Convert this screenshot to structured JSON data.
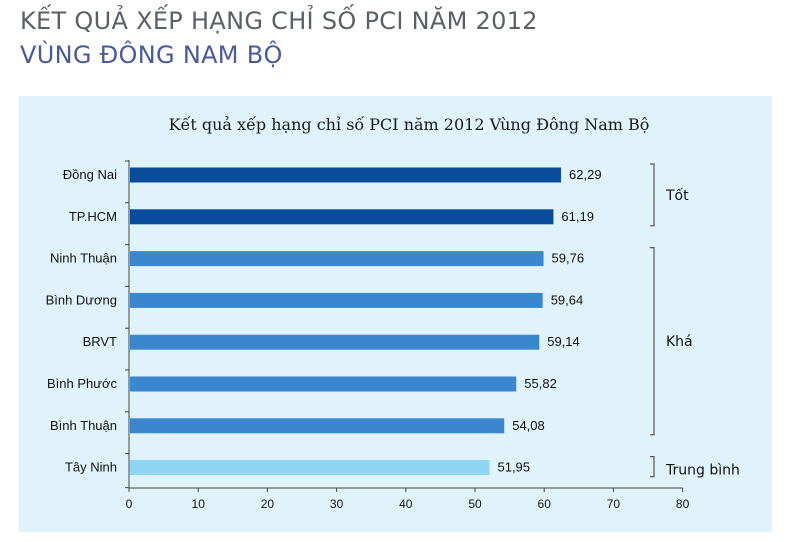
{
  "header": {
    "line1": "KẾT QUẢ XẾP HẠNG CHỈ SỐ PCI NĂM 2012",
    "line2": "VÙNG ĐÔNG NAM BỘ"
  },
  "chart_data": {
    "type": "bar",
    "orientation": "horizontal",
    "title": "Kết quả xếp hạng chỉ số PCI năm 2012 Vùng Đông Nam Bộ",
    "xlabel": "",
    "ylabel": "",
    "xlim": [
      0,
      80
    ],
    "x_ticks": [
      0,
      10,
      20,
      30,
      40,
      50,
      60,
      70,
      80
    ],
    "grid": false,
    "categories": [
      "Đồng Nai",
      "TP.HCM",
      "Ninh Thuận",
      "Bình Dương",
      "BRVT",
      "Bình Phước",
      "Bình Thuận",
      "Tây Ninh"
    ],
    "values": [
      62.29,
      61.19,
      59.76,
      59.64,
      59.14,
      55.82,
      54.08,
      51.95
    ],
    "value_labels": [
      "62,29",
      "61,19",
      "59,76",
      "59,64",
      "59,14",
      "55,82",
      "54,08",
      "51,95"
    ],
    "group_of_bar": [
      "Tốt",
      "Tốt",
      "Khá",
      "Khá",
      "Khá",
      "Khá",
      "Khá",
      "Trung bình"
    ],
    "groups": [
      {
        "label": "Tốt",
        "color": "#0a4c9c",
        "start": 0,
        "end": 1
      },
      {
        "label": "Khá",
        "color": "#3a86cf",
        "start": 2,
        "end": 6
      },
      {
        "label": "Trung bình",
        "color": "#8ed4f3",
        "start": 7,
        "end": 7
      }
    ]
  }
}
